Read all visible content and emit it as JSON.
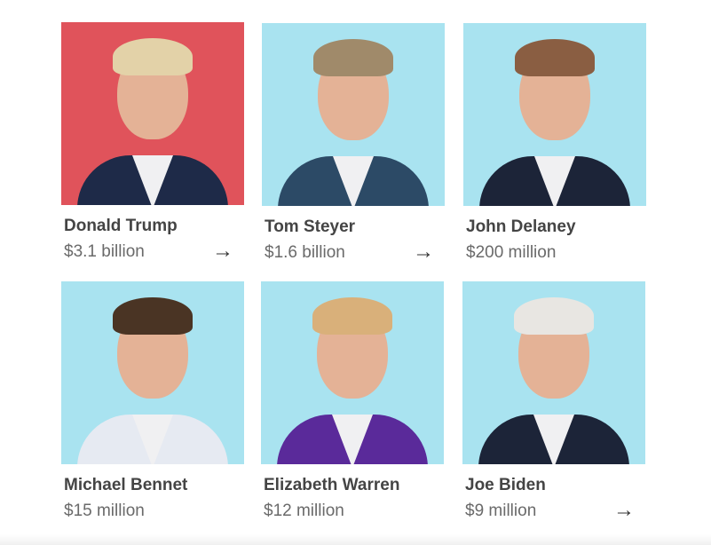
{
  "colors": {
    "red_bg": "#e0535b",
    "blue_bg": "#a9e3f0"
  },
  "candidates": [
    {
      "name": "Donald Trump",
      "value": "$3.1 billion",
      "arrow": "→",
      "bg": "#e0535b",
      "hair": "#e3d2a8",
      "suit": "#1e2a48"
    },
    {
      "name": "Tom Steyer",
      "value": "$1.6 billion",
      "arrow": "→",
      "bg": "#a9e3f0",
      "hair": "#a08a6a",
      "suit": "#2c4a66"
    },
    {
      "name": "John Delaney",
      "value": "$200 million",
      "arrow": "",
      "bg": "#a9e3f0",
      "hair": "#8a5e42",
      "suit": "#1c2438"
    },
    {
      "name": "Michael Bennet",
      "value": "$15 million",
      "arrow": "",
      "bg": "#a9e3f0",
      "hair": "#4a3424",
      "suit": "#e6eaf2"
    },
    {
      "name": "Elizabeth Warren",
      "value": "$12 million",
      "arrow": "",
      "bg": "#a9e3f0",
      "hair": "#d9b07a",
      "suit": "#5a2a9a"
    },
    {
      "name": "Joe Biden",
      "value": "$9 million",
      "arrow": "→",
      "bg": "#a9e3f0",
      "hair": "#e8e6e2",
      "suit": "#1c2438"
    }
  ]
}
